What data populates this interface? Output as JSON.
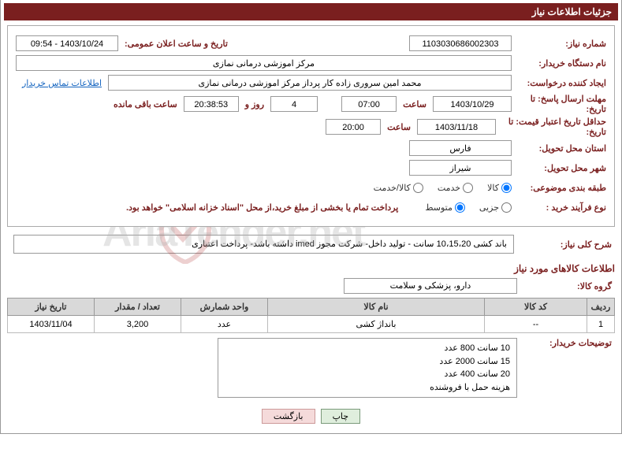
{
  "title": "جزئیات اطلاعات نیاز",
  "need_number": {
    "label": "شماره نیاز:",
    "value": "1103030686002303"
  },
  "announce": {
    "label": "تاریخ و ساعت اعلان عمومی:",
    "value": "1403/10/24 - 09:54"
  },
  "buyer_org": {
    "label": "نام دستگاه خریدار:",
    "value": "مرکز اموزشی درمانی نمازی"
  },
  "requester": {
    "label": "ایجاد کننده درخواست:",
    "value": "محمد امین سروری زاده کار پرداز مرکز اموزشی درمانی نمازی"
  },
  "contact_link": "اطلاعات تماس خریدار",
  "deadline": {
    "label": "مهلت ارسال پاسخ: تا تاریخ:",
    "date": "1403/10/29",
    "time_label": "ساعت",
    "time": "07:00",
    "days": "4",
    "days_label": "روز و",
    "remaining": "20:38:53",
    "remaining_label": "ساعت باقی مانده"
  },
  "price_validity": {
    "label": "حداقل تاریخ اعتبار قیمت: تا تاریخ:",
    "date": "1403/11/18",
    "time_label": "ساعت",
    "time": "20:00"
  },
  "delivery_province": {
    "label": "استان محل تحویل:",
    "value": "فارس"
  },
  "delivery_city": {
    "label": "شهر محل تحویل:",
    "value": "شیراز"
  },
  "category": {
    "label": "طبقه بندی موضوعی:",
    "options": [
      "کالا",
      "خدمت",
      "کالا/خدمت"
    ],
    "selected": 0
  },
  "purchase_type": {
    "label": "نوع فرآیند خرید :",
    "options": [
      "جزیی",
      "متوسط"
    ],
    "selected": 1,
    "note": "پرداخت تمام یا بخشی از مبلغ خرید،از محل \"اسناد خزانه اسلامی\" خواهد بود."
  },
  "need_desc": {
    "label": "شرح کلی نیاز:",
    "value": "باند کشی 10،15،20 سانت - تولید داخل- شرکت مجوز imed داشته باشد- پرداخت اعتباری"
  },
  "goods_section_title": "اطلاعات کالاهای مورد نیاز",
  "product_group": {
    "label": "گروه کالا:",
    "value": "دارو، پزشکی و سلامت"
  },
  "table": {
    "headers": [
      "ردیف",
      "کد کالا",
      "نام کالا",
      "واحد شمارش",
      "تعداد / مقدار",
      "تاریخ نیاز"
    ],
    "rows": [
      {
        "radif": "1",
        "code": "--",
        "name": "بانداژ کشی",
        "unit": "عدد",
        "qty": "3,200",
        "date": "1403/11/04"
      }
    ]
  },
  "buyer_notes": {
    "label": "توضیحات خریدار:",
    "lines": [
      "10 سانت 800 عدد",
      "15 سانت 2000 عدد",
      "20 سانت 400 عدد",
      "هزینه حمل با فروشنده"
    ]
  },
  "buttons": {
    "print": "چاپ",
    "back": "بازگشت"
  },
  "watermark": "AriaTender.net"
}
